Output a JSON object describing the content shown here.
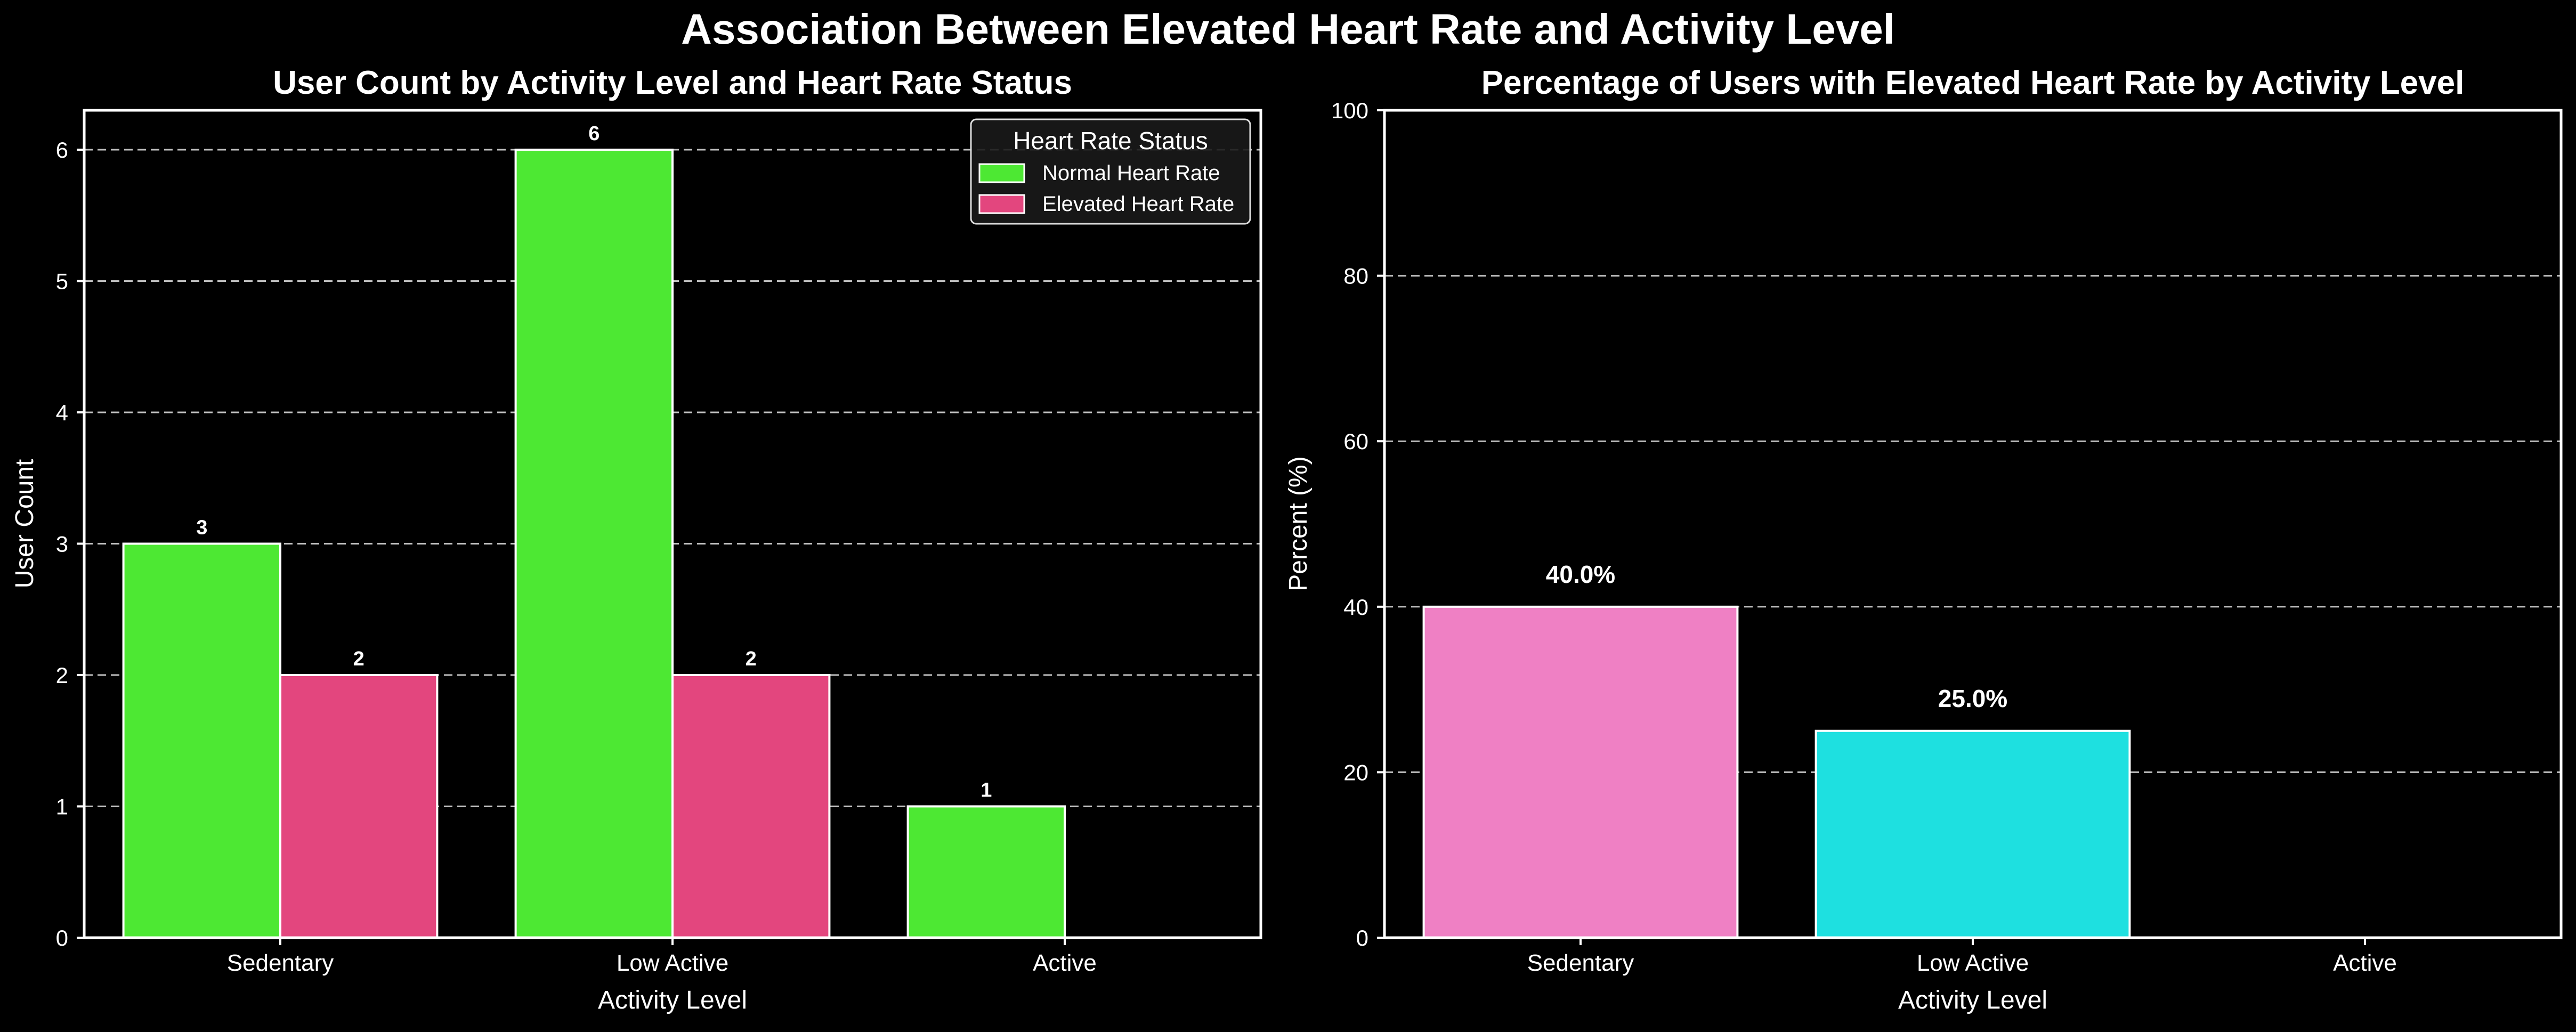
{
  "suptitle": "Association Between Elevated Heart Rate and Activity Level",
  "colors": {
    "background": "#000000",
    "text": "#ffffff",
    "grid": "#bfbfbf",
    "normal": "#4de833",
    "elevated": "#e3467e",
    "pct_sedentary": "#ef80c4",
    "pct_low_active": "#1ee0e0",
    "pct_active": "#8fe88f"
  },
  "chart_data": [
    {
      "type": "bar",
      "title": "User Count by Activity Level and Heart Rate Status",
      "xlabel": "Activity Level",
      "ylabel": "User Count",
      "categories": [
        "Sedentary",
        "Low Active",
        "Active"
      ],
      "ylim": [
        0,
        6.3
      ],
      "yticks": [
        0,
        1,
        2,
        3,
        4,
        5,
        6
      ],
      "grid": "y-dashed",
      "legend": {
        "title": "Heart Rate Status",
        "placement": "top-right"
      },
      "series": [
        {
          "name": "Normal Heart Rate",
          "values": [
            3,
            6,
            1
          ],
          "labels": [
            "3",
            "6",
            "1"
          ]
        },
        {
          "name": "Elevated Heart Rate",
          "values": [
            2,
            2,
            0
          ],
          "labels": [
            "2",
            "2",
            ""
          ]
        }
      ]
    },
    {
      "type": "bar",
      "title": "Percentage of Users with Elevated Heart Rate by Activity Level",
      "xlabel": "Activity Level",
      "ylabel": "Percent (%)",
      "categories": [
        "Sedentary",
        "Low Active",
        "Active"
      ],
      "ylim": [
        0,
        100
      ],
      "yticks": [
        0,
        20,
        40,
        60,
        80,
        100
      ],
      "grid": "y-dashed",
      "values": [
        40.0,
        25.0,
        0.0
      ],
      "labels": [
        "40.0%",
        "25.0%",
        ""
      ]
    }
  ]
}
